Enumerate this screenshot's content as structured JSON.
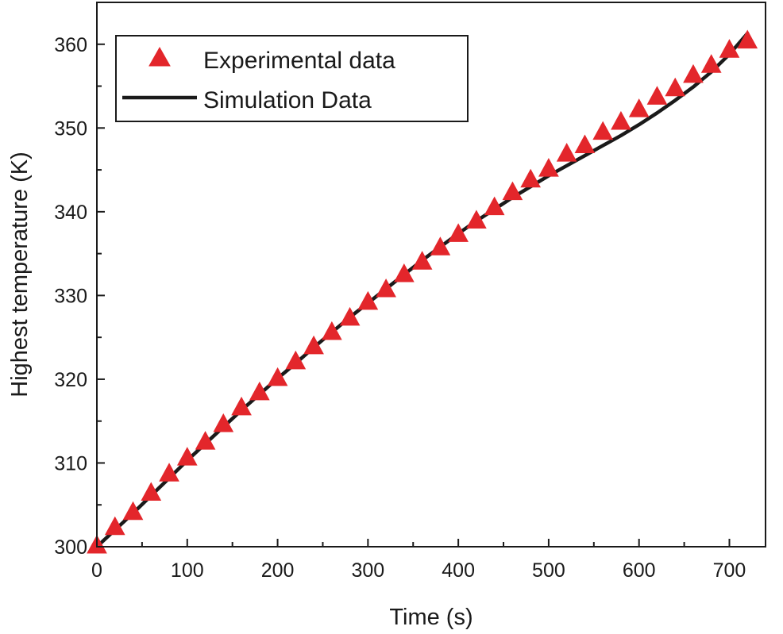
{
  "chart_data": {
    "type": "line",
    "title": "",
    "xlabel": "Time (s)",
    "ylabel": "Highest temperature (K)",
    "xlim": [
      0,
      740
    ],
    "ylim": [
      300,
      365
    ],
    "x_ticks": [
      0,
      100,
      200,
      300,
      400,
      500,
      600,
      700
    ],
    "x_tick_labels": [
      "0",
      "100",
      "200",
      "300",
      "400",
      "500",
      "600",
      "700"
    ],
    "y_ticks": [
      300,
      310,
      320,
      330,
      340,
      350,
      360
    ],
    "y_tick_labels": [
      "300",
      "310",
      "320",
      "330",
      "340",
      "350",
      "360"
    ],
    "grid": false,
    "legend": {
      "position": "top-left",
      "entries": [
        "Experimental data",
        "Simulation Data"
      ]
    },
    "series": [
      {
        "name": "Experimental data",
        "marker": "triangle",
        "color": "#e3262b",
        "x": [
          0,
          20,
          40,
          60,
          80,
          100,
          120,
          140,
          160,
          180,
          200,
          220,
          240,
          260,
          280,
          300,
          320,
          340,
          360,
          380,
          400,
          420,
          440,
          460,
          480,
          500,
          520,
          540,
          560,
          580,
          600,
          620,
          640,
          660,
          680,
          700,
          720
        ],
        "y": [
          300.0,
          302.2,
          304.0,
          306.3,
          308.6,
          310.5,
          312.4,
          314.5,
          316.5,
          318.3,
          320.0,
          322.0,
          323.8,
          325.5,
          327.2,
          329.1,
          330.6,
          332.4,
          333.9,
          335.6,
          337.2,
          338.8,
          340.4,
          342.2,
          343.7,
          345.0,
          346.8,
          347.8,
          349.4,
          350.6,
          352.1,
          353.6,
          354.6,
          356.2,
          357.4,
          359.2,
          360.3
        ]
      },
      {
        "name": "Simulation Data",
        "marker": "line",
        "color": "#1a1a1a",
        "x": [
          0,
          20,
          40,
          60,
          80,
          100,
          120,
          140,
          160,
          180,
          200,
          220,
          240,
          260,
          280,
          300,
          320,
          340,
          360,
          380,
          400,
          420,
          440,
          460,
          480,
          500,
          520,
          540,
          560,
          580,
          600,
          620,
          640,
          660,
          680,
          700,
          720
        ],
        "y": [
          300.0,
          302.0,
          304.0,
          306.1,
          308.2,
          310.3,
          312.3,
          314.3,
          316.3,
          318.2,
          320.1,
          321.9,
          323.8,
          325.6,
          327.4,
          329.1,
          330.8,
          332.5,
          334.2,
          335.8,
          337.4,
          338.9,
          340.3,
          341.7,
          343.0,
          344.3,
          345.5,
          346.7,
          347.9,
          349.1,
          350.4,
          351.8,
          353.3,
          354.9,
          356.7,
          358.8,
          361.3
        ]
      }
    ]
  }
}
